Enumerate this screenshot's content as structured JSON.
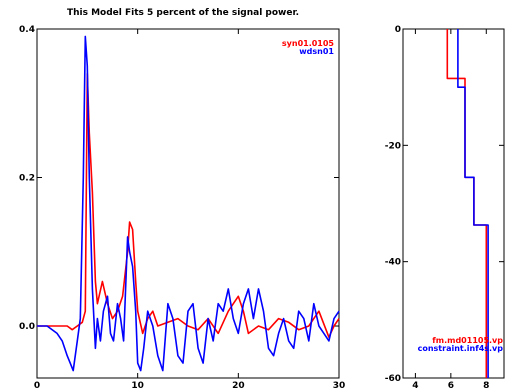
{
  "colors": {
    "red": "#ff0000",
    "blue": "#0000ff",
    "axis": "#000000"
  },
  "chart_data": [
    {
      "type": "line",
      "title": "This Model Fits    5  percent of the signal power.",
      "xlim": [
        0,
        30
      ],
      "ylim": [
        -0.07,
        0.4
      ],
      "xticks": [
        0,
        10,
        20,
        30
      ],
      "yticks": [
        0.0,
        0.2,
        0.4
      ],
      "ytick_labels": [
        "0.0",
        "0.2",
        "0.4"
      ],
      "legend_position": "top-right",
      "series": [
        {
          "name": "syn01.0105",
          "color": "#ff0000",
          "x": [
            0,
            2,
            3,
            3.5,
            4,
            4.5,
            4.8,
            5,
            5.2,
            5.5,
            5.8,
            6,
            6.5,
            7,
            7.5,
            8,
            8.5,
            9,
            9.2,
            9.5,
            9.8,
            10,
            10.5,
            11,
            11.5,
            12,
            13,
            14,
            15,
            16,
            17,
            18,
            19,
            19.5,
            20,
            20.5,
            21,
            22,
            23,
            24,
            25,
            26,
            27,
            27.5,
            28,
            29,
            29.5,
            30
          ],
          "y": [
            0,
            0,
            0,
            -0.005,
            0,
            0.005,
            0.02,
            0.34,
            0.26,
            0.18,
            0.06,
            0.03,
            0.06,
            0.03,
            0.01,
            0.02,
            0.04,
            0.1,
            0.14,
            0.13,
            0.06,
            0.02,
            -0.01,
            0.01,
            0.02,
            0.0,
            0.005,
            0.01,
            0.0,
            -0.005,
            0.01,
            -0.01,
            0.02,
            0.03,
            0.04,
            0.02,
            -0.01,
            0.0,
            -0.005,
            0.01,
            0.005,
            -0.005,
            0.0,
            0.01,
            0.02,
            -0.015,
            0.0,
            0.01
          ]
        },
        {
          "name": "wdsn01",
          "color": "#0000ff",
          "x": [
            0,
            1,
            2,
            2.5,
            3,
            3.3,
            3.6,
            4,
            4.3,
            4.6,
            4.8,
            5,
            5.2,
            5.5,
            5.8,
            6,
            6.3,
            6.6,
            7,
            7.3,
            7.6,
            8,
            8.3,
            8.6,
            9,
            9.2,
            9.5,
            9.8,
            10,
            10.3,
            10.6,
            11,
            11.5,
            12,
            12.5,
            13,
            13.5,
            14,
            14.5,
            15,
            15.5,
            16,
            16.5,
            17,
            17.5,
            18,
            18.5,
            19,
            19.5,
            20,
            20.5,
            21,
            21.5,
            22,
            22.5,
            23,
            23.5,
            24,
            24.5,
            25,
            25.5,
            26,
            26.5,
            27,
            27.5,
            28,
            28.5,
            29,
            29.5,
            30
          ],
          "y": [
            0,
            0,
            -0.01,
            -0.02,
            -0.04,
            -0.05,
            -0.06,
            -0.02,
            0.01,
            0.2,
            0.39,
            0.35,
            0.2,
            0.05,
            -0.03,
            0.01,
            -0.02,
            0.02,
            0.04,
            -0.01,
            -0.02,
            0.03,
            0.01,
            -0.02,
            0.12,
            0.1,
            0.08,
            0.02,
            -0.05,
            -0.06,
            -0.03,
            0.02,
            0.0,
            -0.04,
            -0.06,
            0.03,
            0.01,
            -0.04,
            -0.05,
            0.02,
            0.03,
            -0.03,
            -0.05,
            0.01,
            -0.02,
            0.03,
            0.02,
            0.05,
            0.01,
            -0.01,
            0.03,
            0.05,
            0.01,
            0.05,
            0.02,
            -0.03,
            -0.04,
            -0.01,
            0.01,
            -0.02,
            -0.03,
            0.02,
            0.01,
            -0.02,
            0.03,
            0.0,
            -0.01,
            -0.02,
            0.01,
            0.02
          ]
        }
      ]
    },
    {
      "type": "line",
      "xlim": [
        3.3,
        9
      ],
      "ylim": [
        -60,
        0
      ],
      "xticks": [
        4,
        6,
        8
      ],
      "yticks": [
        0,
        -20,
        -40,
        -60
      ],
      "ytick_labels": [
        "0",
        "-20",
        "-40",
        "-60"
      ],
      "legend_position": "bottom-right",
      "series": [
        {
          "name": "fm.md01105.vp",
          "color": "#ff0000",
          "x": [
            5.8,
            5.8,
            6.8,
            6.8,
            7.3,
            7.3,
            8.0,
            8.0
          ],
          "y": [
            0,
            -8.5,
            -8.5,
            -25.5,
            -25.5,
            -33.7,
            -33.7,
            -60
          ]
        },
        {
          "name": "constraint.inf4s.vp",
          "color": "#0000ff",
          "x": [
            6.4,
            6.4,
            6.8,
            6.8,
            7.3,
            7.3,
            8.1,
            8.1
          ],
          "y": [
            0,
            -10,
            -10,
            -25.5,
            -25.5,
            -33.7,
            -33.7,
            -60
          ]
        }
      ]
    }
  ]
}
